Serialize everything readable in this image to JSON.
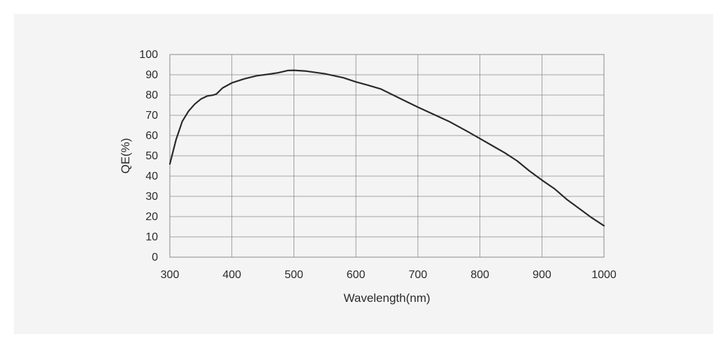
{
  "chart_data": {
    "type": "line",
    "title": "",
    "xlabel": "Wavelength(nm)",
    "ylabel": "QE(%)",
    "xlim": [
      300,
      1000
    ],
    "ylim": [
      0,
      100
    ],
    "grid": true,
    "x_ticks": [
      300,
      400,
      500,
      600,
      700,
      800,
      900,
      1000
    ],
    "y_ticks": [
      0,
      10,
      20,
      30,
      40,
      50,
      60,
      70,
      80,
      90,
      100
    ],
    "line_color": "#2a2a2a",
    "grid_color": "#8a8a8a",
    "background_color": "#f4f4f4",
    "series": [
      {
        "x": [
          300,
          310,
          320,
          330,
          340,
          350,
          360,
          370,
          375,
          385,
          400,
          420,
          440,
          460,
          475,
          490,
          500,
          520,
          550,
          580,
          600,
          620,
          640,
          660,
          680,
          700,
          720,
          750,
          780,
          800,
          820,
          840,
          860,
          880,
          900,
          920,
          940,
          960,
          980,
          1000
        ],
        "y": [
          46,
          58,
          67,
          72,
          75.5,
          78,
          79.5,
          80,
          80.5,
          83.5,
          86,
          88,
          89.5,
          90.3,
          91,
          92.1,
          92.2,
          91.8,
          90.5,
          88.5,
          86.5,
          84.8,
          83,
          80,
          77,
          74,
          71.2,
          67,
          62,
          58.5,
          55,
          51.5,
          47.5,
          42.5,
          38,
          33.8,
          28.5,
          24,
          19.5,
          15.5
        ]
      }
    ]
  }
}
